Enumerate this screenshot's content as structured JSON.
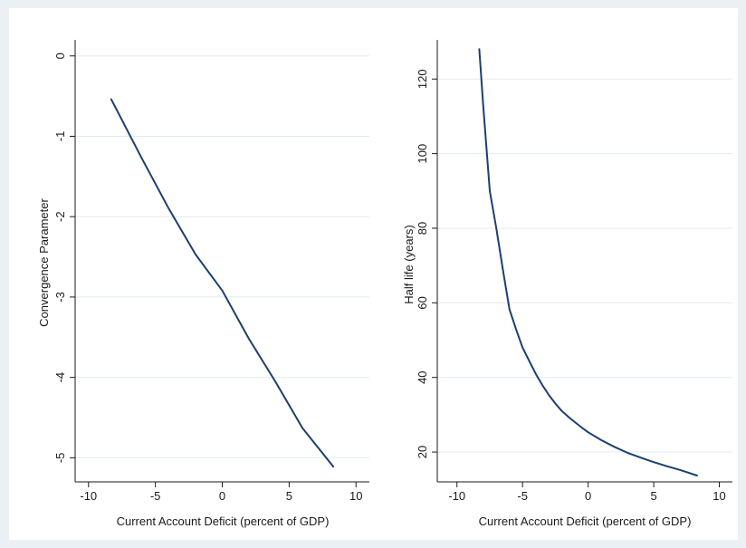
{
  "colors": {
    "background": "#eaf0f3",
    "plot_region": "#ffffff",
    "grid": "#e3ebef",
    "axis": "#1a1a1a",
    "series": "#1c3f6e"
  },
  "chart_data": [
    {
      "type": "line",
      "title": "",
      "xlabel": "Current Account Deficit (percent of GDP)",
      "ylabel": "Convergence Parameter",
      "xlim": [
        -11,
        11
      ],
      "ylim": [
        -5.3,
        0.2
      ],
      "xticks": [
        -10,
        -5,
        0,
        5,
        10
      ],
      "yticks": [
        0,
        -1,
        -2,
        -3,
        -4,
        -5
      ],
      "ytick_rotation": "vertical",
      "grid": "horizontal",
      "legend": "none",
      "series": [
        {
          "x": [
            -8.3,
            -6,
            -4,
            -2,
            0,
            2,
            4,
            6,
            8.3
          ],
          "y": [
            -0.54,
            -1.28,
            -1.9,
            -2.47,
            -2.92,
            -3.52,
            -4.06,
            -4.63,
            -5.11
          ]
        }
      ]
    },
    {
      "type": "line",
      "title": "",
      "xlabel": "Current Account Deficit (percent of GDP)",
      "ylabel": "Half life (years)",
      "xlim": [
        -11.5,
        11
      ],
      "ylim": [
        12,
        130.5
      ],
      "xticks": [
        -10,
        -5,
        0,
        5,
        10
      ],
      "yticks": [
        20,
        40,
        60,
        80,
        100,
        120
      ],
      "ytick_rotation": "vertical",
      "grid": "horizontal",
      "legend": "none",
      "series": [
        {
          "x": [
            -8.3,
            -8,
            -7.5,
            -7,
            -6.5,
            -6,
            -5.5,
            -5,
            -4.5,
            -4,
            -3.5,
            -3,
            -2.5,
            -2,
            -1.5,
            -1,
            -0.5,
            0,
            1,
            2,
            3,
            4,
            5,
            6,
            7,
            8.3
          ],
          "y": [
            128,
            113,
            90,
            80,
            69,
            58.3,
            53,
            48,
            44.5,
            41,
            38,
            35.3,
            33,
            31,
            29.4,
            28,
            26.6,
            25.3,
            23.2,
            21.4,
            19.8,
            18.5,
            17.3,
            16.2,
            15.2,
            13.7
          ]
        }
      ]
    }
  ]
}
